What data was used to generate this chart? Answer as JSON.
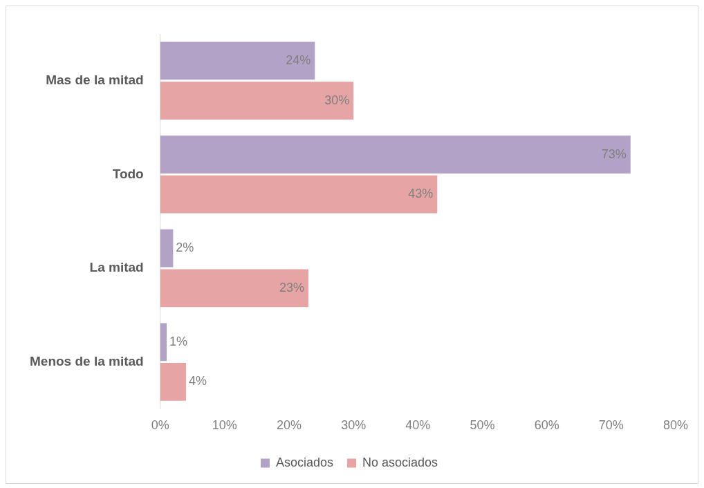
{
  "chart_data": {
    "type": "bar",
    "orientation": "horizontal",
    "categories": [
      "Mas de la mitad",
      "Todo",
      "La mitad",
      "Menos de la mitad"
    ],
    "series": [
      {
        "name": "Asociados",
        "color": "#b3a2c7",
        "values": [
          24,
          73,
          2,
          1
        ],
        "value_labels": [
          "24%",
          "73%",
          "2%",
          "1%"
        ]
      },
      {
        "name": "No asociados",
        "color": "#e6a5a4",
        "values": [
          30,
          43,
          23,
          4
        ],
        "value_labels": [
          "30%",
          "43%",
          "23%",
          "4%"
        ]
      }
    ],
    "xlim": [
      0,
      80
    ],
    "xticks": [
      {
        "value": 0,
        "label": "0%"
      },
      {
        "value": 10,
        "label": "10%"
      },
      {
        "value": 20,
        "label": "20%"
      },
      {
        "value": 30,
        "label": "30%"
      },
      {
        "value": 40,
        "label": "40%"
      },
      {
        "value": 50,
        "label": "50%"
      },
      {
        "value": 60,
        "label": "60%"
      },
      {
        "value": 70,
        "label": "70%"
      },
      {
        "value": 80,
        "label": "80%"
      }
    ],
    "grid": false,
    "legend": "bottom"
  }
}
